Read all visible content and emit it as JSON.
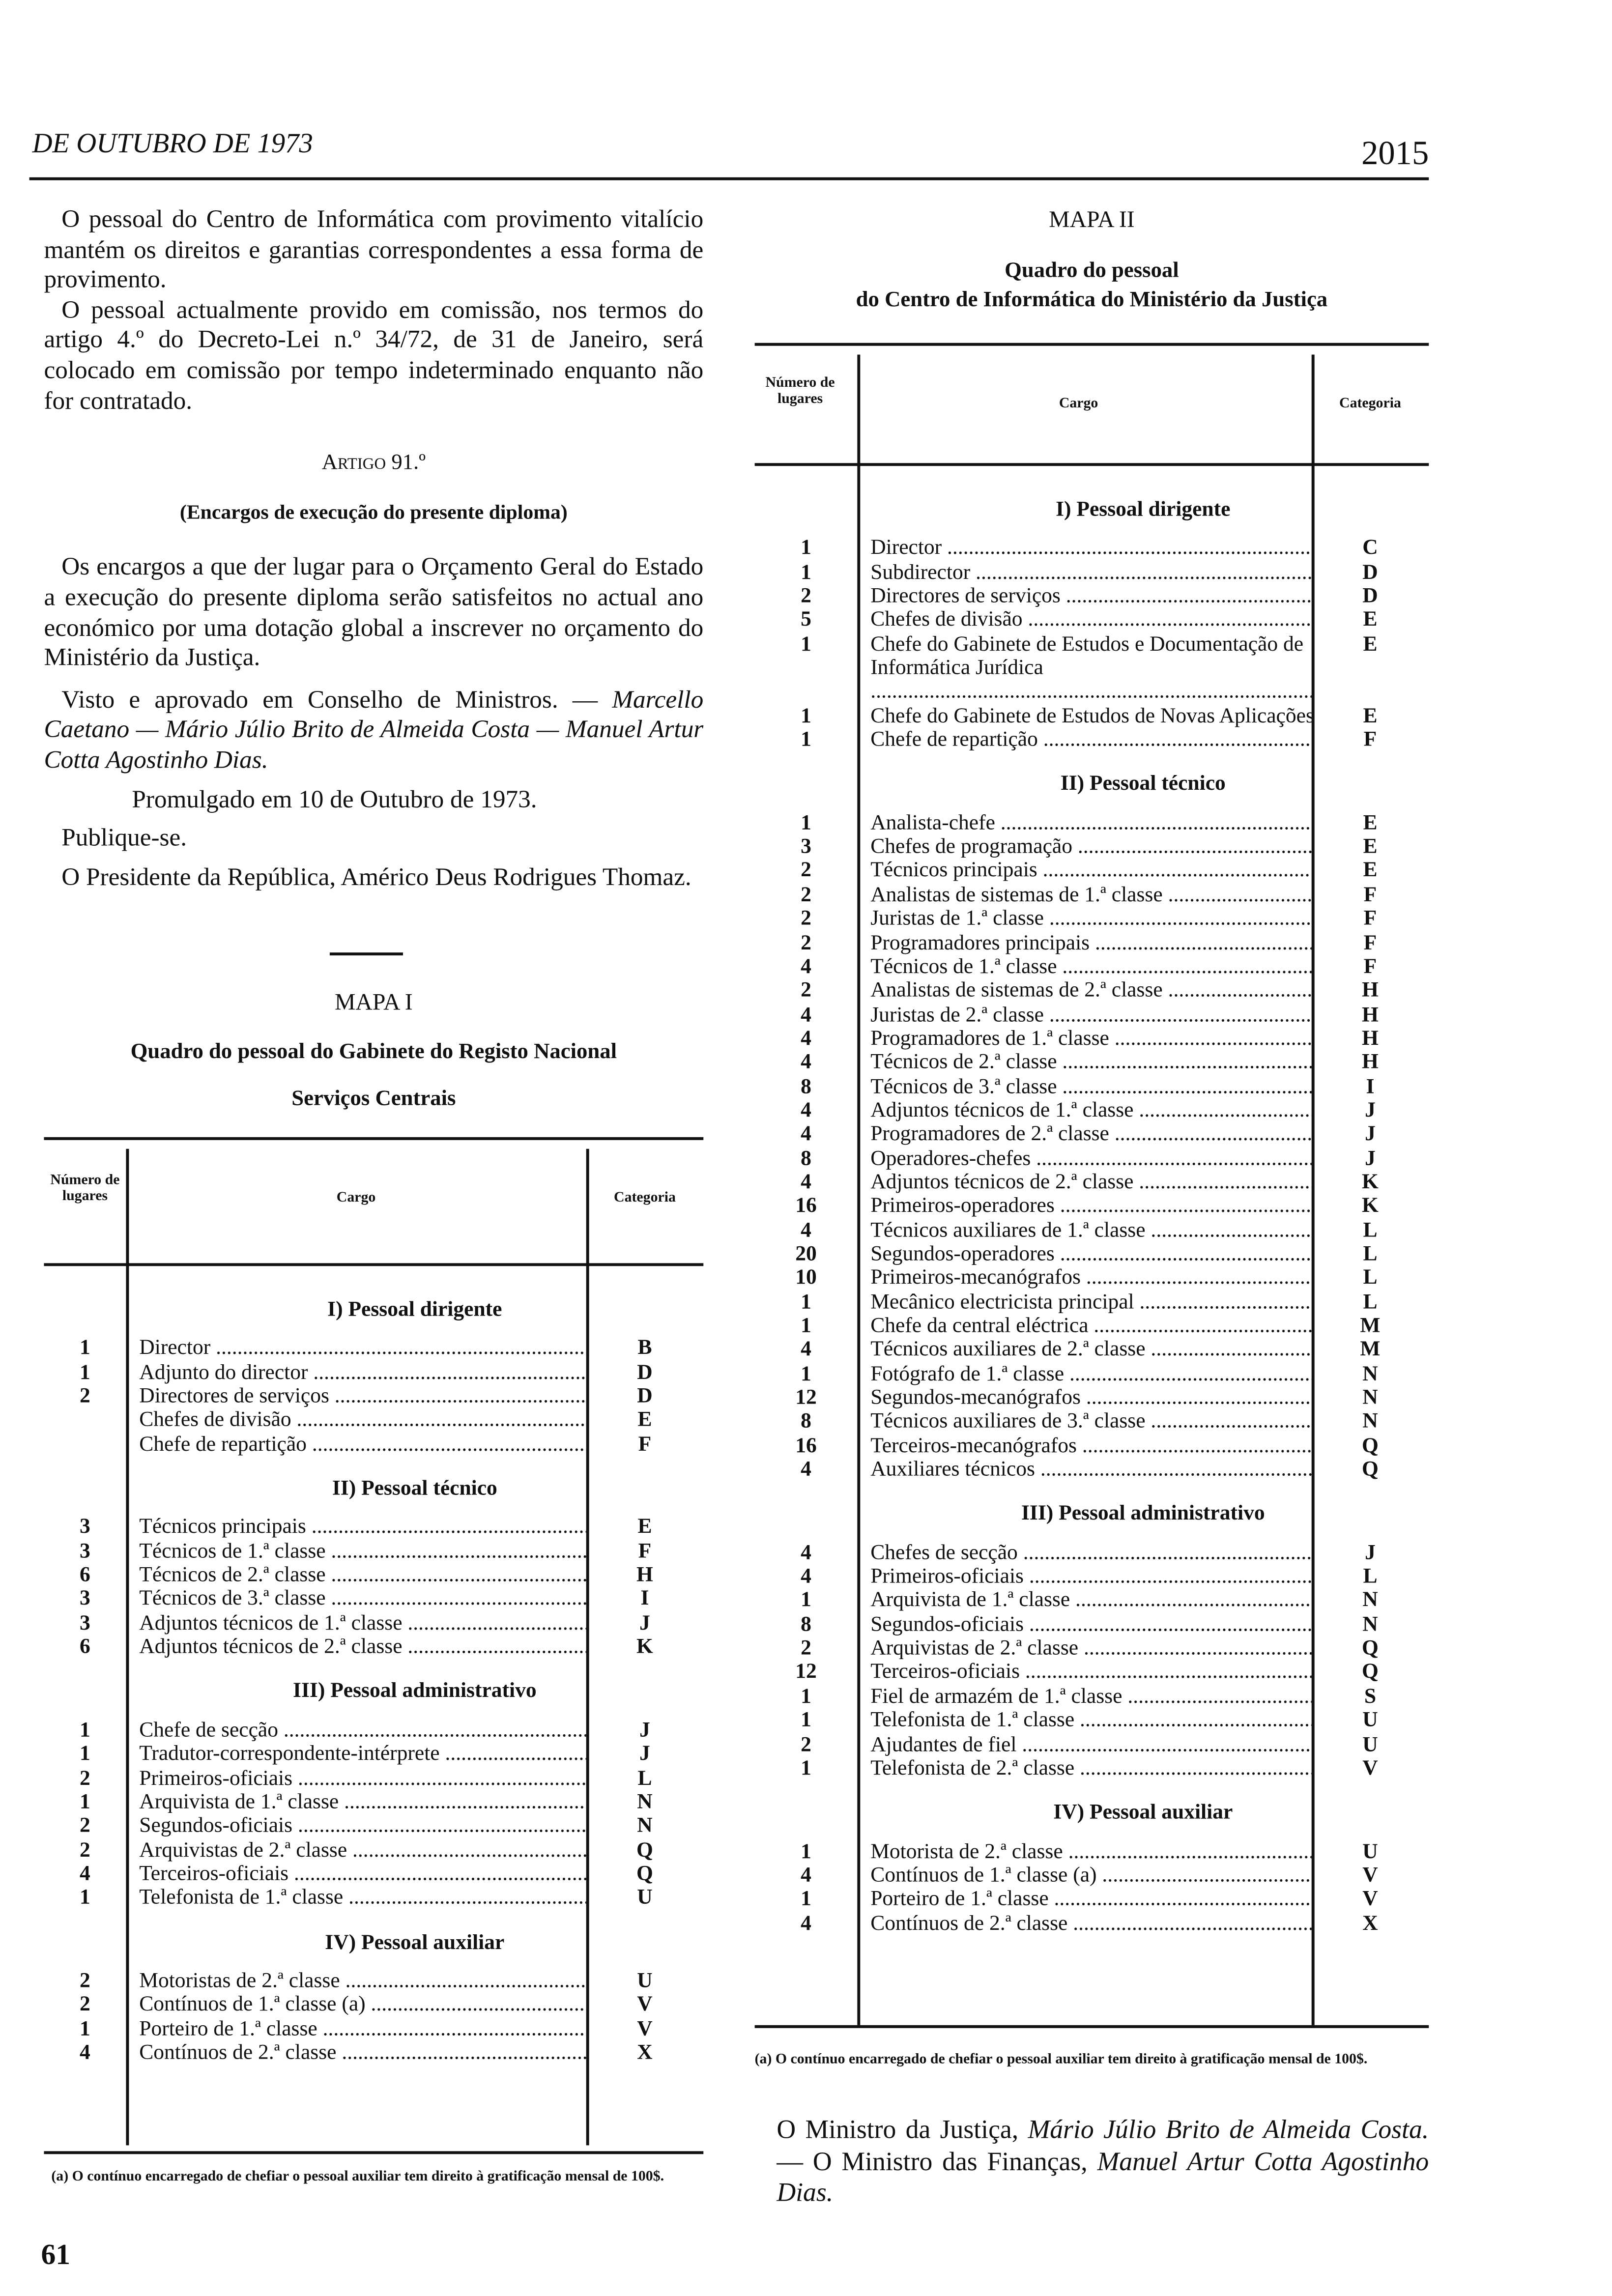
{
  "header": {
    "date": "DE OUTUBRO DE 1973",
    "page_number": "2015"
  },
  "left": {
    "paragraphs": [
      "O pessoal do Centro de Informática com provimento vitalício mantém os direitos e garantias correspondentes a essa forma de provimento.",
      "O pessoal actualmente provido em comissão, nos termos do artigo 4.º do Decreto-Lei n.º 34/72, de 31 de Janeiro, será colocado em comissão por tempo indeterminado enquanto não for contratado."
    ],
    "article_title": "Artigo 91.º",
    "article_subtitle": "(Encargos de execução do presente diploma)",
    "article_text": "Os encargos a que der lugar para o Orçamento Geral do Estado a execução do presente diploma serão satisfeitos no actual ano económico por uma dotação global a inscrever no orçamento do Ministério da Justiça.",
    "approval": "Visto e aprovado em Conselho de Ministros. —",
    "approval_signatories": "Marcello Caetano — Mário Júlio Brito de Almeida Costa — Manuel Artur Cotta Agostinho Dias.",
    "promulgated": "Promulgado em 10 de Outubro de 1973.",
    "publish": "Publique-se.",
    "president": "O Presidente da República, Américo Deus Rodrigues Thomaz."
  },
  "mapa1": {
    "title": "MAPA I",
    "subtitle": "Quadro do pessoal do Gabinete do Registo Nacional",
    "subtitle2": "Serviços Centrais",
    "headers": {
      "number": "Número de lugares",
      "cargo": "Cargo",
      "category": "Categoria"
    },
    "sections": [
      {
        "title": "I) Pessoal dirigente",
        "rows": [
          [
            "1",
            "Director",
            "B"
          ],
          [
            "1",
            "Adjunto do director",
            "D"
          ],
          [
            "2",
            "Directores de serviços",
            "D"
          ],
          [
            "",
            "Chefes de divisão",
            "E"
          ],
          [
            "",
            "Chefe de repartição",
            "F"
          ]
        ]
      },
      {
        "title": "II) Pessoal técnico",
        "rows": [
          [
            "3",
            "Técnicos principais",
            "E"
          ],
          [
            "3",
            "Técnicos de 1.ª classe",
            "F"
          ],
          [
            "6",
            "Técnicos de 2.ª classe",
            "H"
          ],
          [
            "3",
            "Técnicos de 3.ª classe",
            "I"
          ],
          [
            "3",
            "Adjuntos técnicos de 1.ª classe",
            "J"
          ],
          [
            "6",
            "Adjuntos técnicos de 2.ª classe",
            "K"
          ]
        ]
      },
      {
        "title": "III) Pessoal administrativo",
        "rows": [
          [
            "1",
            "Chefe de secção",
            "J"
          ],
          [
            "1",
            "Tradutor-correspondente-intérprete",
            "J"
          ],
          [
            "2",
            "Primeiros-oficiais",
            "L"
          ],
          [
            "1",
            "Arquivista de 1.ª classe",
            "N"
          ],
          [
            "2",
            "Segundos-oficiais",
            "N"
          ],
          [
            "2",
            "Arquivistas de 2.ª classe",
            "Q"
          ],
          [
            "4",
            "Terceiros-oficiais",
            "Q"
          ],
          [
            "1",
            "Telefonista de 1.ª classe",
            "U"
          ]
        ]
      },
      {
        "title": "IV) Pessoal auxiliar",
        "rows": [
          [
            "2",
            "Motoristas de 2.ª classe",
            "U"
          ],
          [
            "2",
            "Contínuos de 1.ª classe (a)",
            "V"
          ],
          [
            "1",
            "Porteiro de 1.ª classe",
            "V"
          ],
          [
            "4",
            "Contínuos de 2.ª classe",
            "X"
          ]
        ]
      }
    ],
    "footnote": "(a) O contínuo encarregado de chefiar o pessoal auxiliar tem direito à gratificação mensal de 100$."
  },
  "mapa2": {
    "title": "MAPA II",
    "subtitle": "Quadro do pessoal",
    "subtitle2": "do Centro de Informática do Ministério da Justiça",
    "headers": {
      "number": "Número de lugares",
      "cargo": "Cargo",
      "category": "Categoria"
    },
    "sections": [
      {
        "title": "I) Pessoal dirigente",
        "rows": [
          [
            "1",
            "Director",
            "C"
          ],
          [
            "1",
            "Subdirector",
            "D"
          ],
          [
            "2",
            "Directores de serviços",
            "D"
          ],
          [
            "5",
            "Chefes de divisão",
            "E"
          ],
          [
            "1",
            "Chefe do Gabinete de Estudos e Documentação de Informática Jurídica",
            "E"
          ],
          [
            "1",
            "Chefe do Gabinete de Estudos de Novas Aplicações",
            "E"
          ],
          [
            "1",
            "Chefe de repartição",
            "F"
          ]
        ]
      },
      {
        "title": "II) Pessoal técnico",
        "rows": [
          [
            "1",
            "Analista-chefe",
            "E"
          ],
          [
            "3",
            "Chefes de programação",
            "E"
          ],
          [
            "2",
            "Técnicos principais",
            "E"
          ],
          [
            "2",
            "Analistas de sistemas de 1.ª classe",
            "F"
          ],
          [
            "2",
            "Juristas de 1.ª classe",
            "F"
          ],
          [
            "2",
            "Programadores principais",
            "F"
          ],
          [
            "4",
            "Técnicos de 1.ª classe",
            "F"
          ],
          [
            "2",
            "Analistas de sistemas de 2.ª classe",
            "H"
          ],
          [
            "4",
            "Juristas de 2.ª classe",
            "H"
          ],
          [
            "4",
            "Programadores de 1.ª classe",
            "H"
          ],
          [
            "4",
            "Técnicos de 2.ª classe",
            "H"
          ],
          [
            "8",
            "Técnicos de 3.ª classe",
            "I"
          ],
          [
            "4",
            "Adjuntos técnicos de 1.ª classe",
            "J"
          ],
          [
            "4",
            "Programadores de 2.ª classe",
            "J"
          ],
          [
            "8",
            "Operadores-chefes",
            "J"
          ],
          [
            "4",
            "Adjuntos técnicos de 2.ª classe",
            "K"
          ],
          [
            "16",
            "Primeiros-operadores",
            "K"
          ],
          [
            "4",
            "Técnicos auxiliares de 1.ª classe",
            "L"
          ],
          [
            "20",
            "Segundos-operadores",
            "L"
          ],
          [
            "10",
            "Primeiros-mecanógrafos",
            "L"
          ],
          [
            "1",
            "Mecânico electricista principal",
            "L"
          ],
          [
            "1",
            "Chefe da central eléctrica",
            "M"
          ],
          [
            "4",
            "Técnicos auxiliares de 2.ª classe",
            "M"
          ],
          [
            "1",
            "Fotógrafo de 1.ª classe",
            "N"
          ],
          [
            "12",
            "Segundos-mecanógrafos",
            "N"
          ],
          [
            "8",
            "Técnicos auxiliares de 3.ª classe",
            "N"
          ],
          [
            "16",
            "Terceiros-mecanógrafos",
            "Q"
          ],
          [
            "4",
            "Auxiliares técnicos",
            "Q"
          ]
        ]
      },
      {
        "title": "III) Pessoal administrativo",
        "rows": [
          [
            "4",
            "Chefes de secção",
            "J"
          ],
          [
            "4",
            "Primeiros-oficiais",
            "L"
          ],
          [
            "1",
            "Arquivista de 1.ª classe",
            "N"
          ],
          [
            "8",
            "Segundos-oficiais",
            "N"
          ],
          [
            "2",
            "Arquivistas de 2.ª classe",
            "Q"
          ],
          [
            "12",
            "Terceiros-oficiais",
            "Q"
          ],
          [
            "1",
            "Fiel de armazém de 1.ª classe",
            "S"
          ],
          [
            "1",
            "Telefonista de 1.ª classe",
            "U"
          ],
          [
            "2",
            "Ajudantes de fiel",
            "U"
          ],
          [
            "1",
            "Telefonista de 2.ª classe",
            "V"
          ]
        ]
      },
      {
        "title": "IV) Pessoal auxiliar",
        "rows": [
          [
            "1",
            "Motorista de 2.ª classe",
            "U"
          ],
          [
            "4",
            "Contínuos de 1.ª classe (a)",
            "V"
          ],
          [
            "1",
            "Porteiro de 1.ª classe",
            "V"
          ],
          [
            "4",
            "Contínuos de 2.ª classe",
            "X"
          ]
        ]
      }
    ],
    "footnote": "(a) O contínuo encarregado de chefiar o pessoal auxiliar tem direito à gratificação mensal de 100$."
  },
  "signature": {
    "text1": "O Ministro da Justiça, ",
    "name1": "Mário Júlio Brito de Almeida Costa.",
    "text2": " — O Ministro das Finanças, ",
    "name2": "Manuel Artur Cotta Agostinho Dias."
  },
  "footer": {
    "mark": "61"
  }
}
